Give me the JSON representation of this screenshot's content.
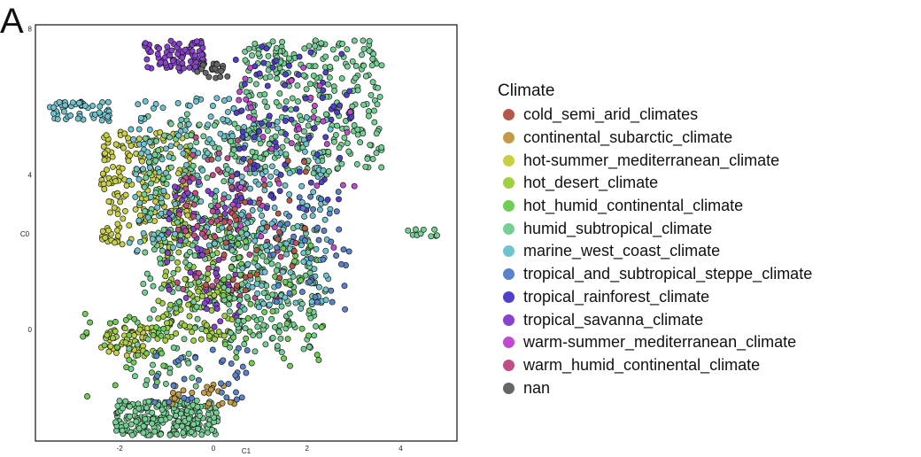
{
  "panel_label": "A",
  "chart_data": {
    "type": "scatter",
    "title": "",
    "xlabel": "C1",
    "ylabel": "C0",
    "xlim": [
      -3.8,
      5.2
    ],
    "ylim": [
      -2.9,
      7.9
    ],
    "x_ticks": [
      {
        "value": -2,
        "label": "-2"
      },
      {
        "value": 0,
        "label": "0"
      },
      {
        "value": 2,
        "label": "2"
      },
      {
        "value": 4,
        "label": "4"
      }
    ],
    "y_ticks": [
      {
        "value": 0,
        "label": "0"
      },
      {
        "value": 4,
        "label": "4"
      },
      {
        "value": 7.8,
        "label": "8"
      }
    ],
    "grid": false,
    "legend": {
      "title": "Climate",
      "placement": "right",
      "entries": [
        {
          "label": "cold_semi_arid_climates",
          "color": "#b5574a"
        },
        {
          "label": "continental_subarctic_climate",
          "color": "#c39a45"
        },
        {
          "label": "hot-summer_mediterranean_climate",
          "color": "#c8cf42"
        },
        {
          "label": "hot_desert_climate",
          "color": "#a0cf44"
        },
        {
          "label": "hot_humid_continental_climate",
          "color": "#6fcc54"
        },
        {
          "label": "humid_subtropical_climate",
          "color": "#74cf93"
        },
        {
          "label": "marine_west_coast_climate",
          "color": "#6fc3cf"
        },
        {
          "label": "tropical_and_subtropical_steppe_climate",
          "color": "#5a82c9"
        },
        {
          "label": "tropical_rainforest_climate",
          "color": "#4f3fc9"
        },
        {
          "label": "tropical_savanna_climate",
          "color": "#8842cf"
        },
        {
          "label": "warm-summer_mediterranean_climate",
          "color": "#c14ad0"
        },
        {
          "label": "warm_humid_continental_climate",
          "color": "#c14d86"
        },
        {
          "label": "nan",
          "color": "#666666"
        }
      ]
    },
    "regions": [
      {
        "class": "humid_subtropical_climate",
        "x": [
          -2.1,
          0.1
        ],
        "y": [
          -2.75,
          -1.85
        ],
        "count": 260
      },
      {
        "class": "hot-summer_mediterranean_climate",
        "x": [
          -2.4,
          -1.4
        ],
        "y": [
          -0.7,
          0.05
        ],
        "count": 45
      },
      {
        "class": "hot_desert_climate",
        "x": [
          -2.4,
          -1.2
        ],
        "y": [
          -0.6,
          0.1
        ],
        "count": 20
      },
      {
        "class": "humid_subtropical_climate",
        "x": [
          -1.8,
          -0.2
        ],
        "y": [
          -1.5,
          0.6
        ],
        "count": 40
      },
      {
        "class": "continental_subarctic_climate",
        "x": [
          -0.9,
          0.6
        ],
        "y": [
          -2.0,
          -1.4
        ],
        "count": 25
      },
      {
        "class": "hot-summer_mediterranean_climate",
        "x": [
          -2.4,
          -0.4
        ],
        "y": [
          2.2,
          5.2
        ],
        "count": 240
      },
      {
        "class": "hot_desert_climate",
        "x": [
          -1.2,
          0.4
        ],
        "y": [
          -0.3,
          3.0
        ],
        "count": 170
      },
      {
        "class": "humid_subtropical_climate",
        "x": [
          -1.5,
          0.6
        ],
        "y": [
          0.5,
          5.6
        ],
        "count": 200
      },
      {
        "class": "marine_west_coast_climate",
        "x": [
          -1.8,
          1.0
        ],
        "y": [
          2.0,
          6.0
        ],
        "count": 160
      },
      {
        "class": "marine_west_coast_climate",
        "x": [
          -3.5,
          -2.2
        ],
        "y": [
          5.4,
          5.9
        ],
        "count": 55
      },
      {
        "class": "tropical_savanna_climate",
        "x": [
          -1.5,
          -0.2
        ],
        "y": [
          6.7,
          7.5
        ],
        "count": 90
      },
      {
        "class": "tropical_savanna_climate",
        "x": [
          -1.0,
          0.6
        ],
        "y": [
          0.0,
          4.0
        ],
        "count": 70
      },
      {
        "class": "nan",
        "x": [
          -0.4,
          0.3
        ],
        "y": [
          6.5,
          6.9
        ],
        "count": 25
      },
      {
        "class": "warm_humid_continental_climate",
        "x": [
          -0.8,
          1.5
        ],
        "y": [
          0.8,
          5.0
        ],
        "count": 80
      },
      {
        "class": "humid_subtropical_climate",
        "x": [
          0.6,
          3.6
        ],
        "y": [
          4.0,
          7.5
        ],
        "count": 320
      },
      {
        "class": "humid_subtropical_climate",
        "x": [
          0.3,
          2.2
        ],
        "y": [
          -0.6,
          2.8
        ],
        "count": 180
      },
      {
        "class": "hot_humid_continental_climate",
        "x": [
          0.2,
          2.4
        ],
        "y": [
          -1.0,
          2.5
        ],
        "count": 60
      },
      {
        "class": "marine_west_coast_climate",
        "x": [
          0.6,
          2.5
        ],
        "y": [
          0.5,
          5.5
        ],
        "count": 140
      },
      {
        "class": "tropical_rainforest_climate",
        "x": [
          0.4,
          3.0
        ],
        "y": [
          3.0,
          7.4
        ],
        "count": 80
      },
      {
        "class": "tropical_and_subtropical_steppe_climate",
        "x": [
          1.2,
          2.9
        ],
        "y": [
          0.5,
          3.6
        ],
        "count": 45
      },
      {
        "class": "tropical_and_subtropical_steppe_climate",
        "x": [
          -1.3,
          0.8
        ],
        "y": [
          -1.9,
          -0.4
        ],
        "count": 35
      },
      {
        "class": "warm-summer_mediterranean_climate",
        "x": [
          0.4,
          3.2
        ],
        "y": [
          2.0,
          6.8
        ],
        "count": 40
      },
      {
        "class": "cold_semi_arid_climates",
        "x": [
          -0.2,
          2.0
        ],
        "y": [
          1.0,
          4.5
        ],
        "count": 35
      },
      {
        "class": "humid_subtropical_climate",
        "x": [
          4.0,
          4.9
        ],
        "y": [
          2.4,
          2.6
        ],
        "count": 10
      },
      {
        "class": "hot_humid_continental_climate",
        "x": [
          -2.8,
          -1.0
        ],
        "y": [
          -1.8,
          0.4
        ],
        "count": 30
      }
    ]
  }
}
